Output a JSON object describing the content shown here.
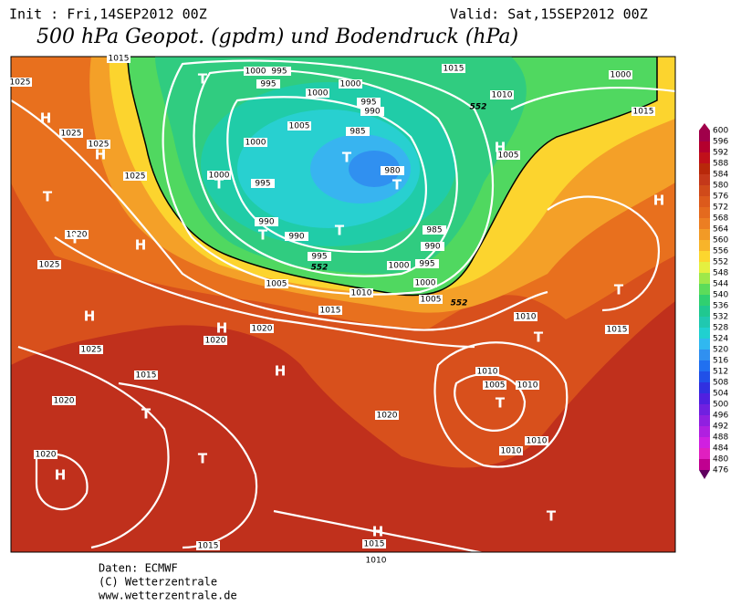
{
  "header": {
    "init": "Init : Fri,14SEP2012 00Z",
    "valid": "Valid: Sat,15SEP2012 00Z",
    "title": "500 hPa Geopot. (gpdm) und Bodendruck (hPa)"
  },
  "legend": {
    "levels": [
      600,
      596,
      592,
      588,
      584,
      580,
      576,
      572,
      568,
      564,
      560,
      556,
      552,
      548,
      544,
      540,
      536,
      532,
      528,
      524,
      520,
      516,
      512,
      508,
      504,
      500,
      496,
      492,
      488,
      484,
      480,
      476
    ],
    "colors": [
      "#a0004a",
      "#b4002e",
      "#c0101a",
      "#b8280a",
      "#c4381a",
      "#d04a1a",
      "#dc5a1c",
      "#e46a1e",
      "#ec7e22",
      "#f29a26",
      "#f8b42a",
      "#fcd62e",
      "#e4f040",
      "#9ee84a",
      "#5cdc5a",
      "#30d070",
      "#20c890",
      "#20c8b0",
      "#20d0d0",
      "#30b8f0",
      "#3090f0",
      "#2070f0",
      "#2050e8",
      "#3030e0",
      "#5020e0",
      "#7020e0",
      "#9020e0",
      "#b020e0",
      "#d020e0",
      "#e020c0",
      "#c00090",
      "#600060"
    ]
  },
  "map": {
    "pressure_labels": [
      1015,
      1025,
      1000,
      995,
      995,
      1000,
      1000,
      1015,
      1010,
      1000,
      1015,
      995,
      990,
      1005,
      985,
      1000,
      1025,
      1025,
      1025,
      1005,
      1000,
      995,
      980,
      990,
      990,
      985,
      990,
      995,
      995,
      1000,
      1020,
      1025,
      1005,
      1010,
      1000,
      1005,
      1015,
      1010,
      1020,
      1020,
      1015,
      1025,
      1010,
      1005,
      1015,
      1010,
      1020,
      1020,
      1010,
      1010,
      1020,
      1015,
      1015,
      1010
    ],
    "contour_552_labels": [
      552,
      552,
      552
    ],
    "centers": [
      "H",
      "T",
      "H",
      "T",
      "T",
      "H",
      "H",
      "H",
      "H",
      "T",
      "T",
      "H",
      "T",
      "T",
      "T",
      "T",
      "T",
      "H",
      "H",
      "T",
      "T",
      "T",
      "H",
      "T"
    ]
  },
  "footer": [
    "Daten: ECMWF",
    "(C) Wetterzentrale",
    "www.wetterzentrale.de"
  ]
}
